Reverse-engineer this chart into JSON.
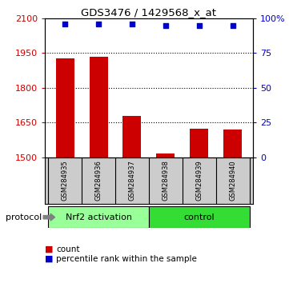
{
  "title": "GDS3476 / 1429568_x_at",
  "samples": [
    "GSM284935",
    "GSM284936",
    "GSM284937",
    "GSM284938",
    "GSM284939",
    "GSM284940"
  ],
  "counts": [
    1928,
    1935,
    1680,
    1518,
    1625,
    1622
  ],
  "percentile_ranks": [
    96,
    96,
    96,
    95,
    95,
    95
  ],
  "ylim_left": [
    1500,
    2100
  ],
  "ylim_right": [
    0,
    100
  ],
  "yticks_left": [
    1500,
    1650,
    1800,
    1950,
    2100
  ],
  "ytick_labels_left": [
    "1500",
    "1650",
    "1800",
    "1950",
    "2100"
  ],
  "yticks_right": [
    0,
    25,
    50,
    75,
    100
  ],
  "ytick_labels_right": [
    "0",
    "25",
    "50",
    "75",
    "100%"
  ],
  "bar_color": "#cc0000",
  "scatter_color": "#0000cc",
  "groups": [
    {
      "label": "Nrf2 activation",
      "indices": [
        0,
        1,
        2
      ],
      "color": "#99ff99"
    },
    {
      "label": "control",
      "indices": [
        3,
        4,
        5
      ],
      "color": "#33dd33"
    }
  ],
  "protocol_label": "protocol",
  "legend_count_label": "count",
  "legend_percentile_label": "percentile rank within the sample",
  "background_color": "#ffffff",
  "sample_bg_color": "#cccccc",
  "grid_dotted_ticks": [
    1650,
    1800,
    1950
  ]
}
